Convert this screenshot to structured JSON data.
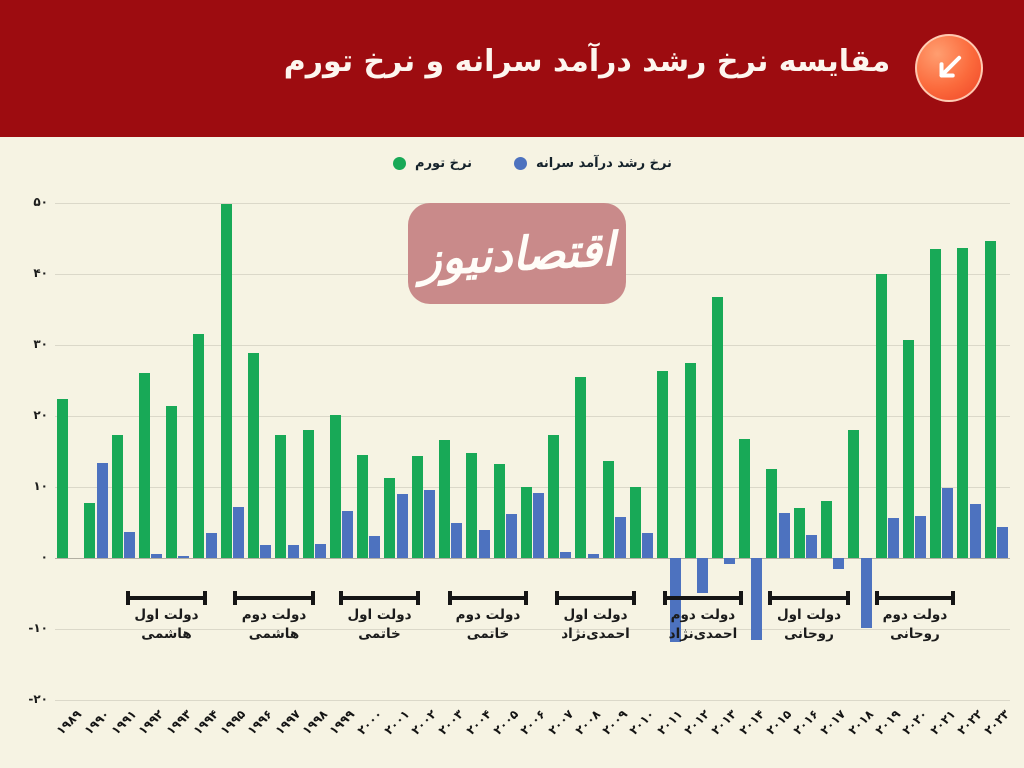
{
  "header": {
    "title": "مقایسه نرخ رشد درآمد سرانه و نرخ تورم",
    "icon": "arrow-down-left-icon",
    "background_color": "#9d0c10",
    "icon_colors": [
      "#ff9e70",
      "#ef4426"
    ]
  },
  "watermark": {
    "text": "اقتصادنیوز",
    "background_color": "#c98a8a"
  },
  "legend": [
    {
      "label": "نرخ تورم",
      "color": "#18a957"
    },
    {
      "label": "نرخ رشد درآمد سرانه",
      "color": "#4d72bf"
    }
  ],
  "chart_data": {
    "type": "bar",
    "title": "مقایسه نرخ رشد درآمد سرانه و نرخ تورم",
    "xlabel": "",
    "ylabel": "",
    "ylim": [
      -20,
      50
    ],
    "grid": true,
    "legend_position": "top",
    "categories": [
      1989,
      1990,
      1991,
      1992,
      1993,
      1994,
      1995,
      1996,
      1997,
      1998,
      1999,
      2000,
      2001,
      2002,
      2003,
      2004,
      2005,
      2006,
      2007,
      2008,
      2009,
      2010,
      2011,
      2012,
      2013,
      2014,
      2015,
      2016,
      2017,
      2018,
      2019,
      2020,
      2021,
      2022,
      2023
    ],
    "categories_fa": [
      "۱۹۸۹",
      "۱۹۹۰",
      "۱۹۹۱",
      "۱۹۹۲",
      "۱۹۹۳",
      "۱۹۹۴",
      "۱۹۹۵",
      "۱۹۹۶",
      "۱۹۹۷",
      "۱۹۹۸",
      "۱۹۹۹",
      "۲۰۰۰",
      "۲۰۰۱",
      "۲۰۰۲",
      "۲۰۰۳",
      "۲۰۰۴",
      "۲۰۰۵",
      "۲۰۰۶",
      "۲۰۰۷",
      "۲۰۰۸",
      "۲۰۰۹",
      "۲۰۱۰",
      "۲۰۱۱",
      "۲۰۱۲",
      "۲۰۱۳",
      "۲۰۱۴",
      "۲۰۱۵",
      "۲۰۱۶",
      "۲۰۱۷",
      "۲۰۱۸",
      "۲۰۱۹",
      "۲۰۲۰",
      "۲۰۲۱",
      "۲۰۲۲",
      "۲۰۲۳"
    ],
    "yticks": [
      50,
      40,
      30,
      20,
      10,
      0,
      -10,
      -20
    ],
    "yticks_fa": [
      "۵۰",
      "۴۰",
      "۳۰",
      "۲۰",
      "۱۰",
      "۰",
      "-۱۰",
      "-۲۰"
    ],
    "series": [
      {
        "name": "نرخ تورم",
        "color": "#18a957",
        "values": [
          22.4,
          7.7,
          17.3,
          26.1,
          21.4,
          31.6,
          49.9,
          28.9,
          17.3,
          18.0,
          20.1,
          14.5,
          11.3,
          14.4,
          16.6,
          14.8,
          13.3,
          10.0,
          17.3,
          25.5,
          13.6,
          10.0,
          26.3,
          27.4,
          36.8,
          16.8,
          12.5,
          7.1,
          8.0,
          18.0,
          40.0,
          30.7,
          43.5,
          43.6,
          44.7
        ]
      },
      {
        "name": "نرخ رشد درآمد سرانه",
        "color": "#4d72bf",
        "values": [
          0,
          13.4,
          3.7,
          0.5,
          0.3,
          3.5,
          7.2,
          1.9,
          1.9,
          2.0,
          6.6,
          3.1,
          9.0,
          9.6,
          5.0,
          4.0,
          6.2,
          9.2,
          0.9,
          0.5,
          5.8,
          3.5,
          -11.8,
          -4.9,
          -0.9,
          -11.5,
          6.3,
          3.3,
          -1.6,
          -9.8,
          5.7,
          5.9,
          9.9,
          7.6,
          4.4
        ]
      }
    ]
  },
  "periods": [
    {
      "label_line1": "دولت اول",
      "label_line2": "هاشمی",
      "x_start_pct": 7.43,
      "x_end_pct": 15.92
    },
    {
      "label_line1": "دولت دوم",
      "label_line2": "هاشمی",
      "x_start_pct": 18.64,
      "x_end_pct": 27.23
    },
    {
      "label_line1": "دولت اول",
      "label_line2": "خاتمی",
      "x_start_pct": 29.74,
      "x_end_pct": 38.22
    },
    {
      "label_line1": "دولت دوم",
      "label_line2": "خاتمی",
      "x_start_pct": 41.15,
      "x_end_pct": 49.53
    },
    {
      "label_line1": "دولت اول",
      "label_line2": "احمدی‌نژاد",
      "x_start_pct": 52.36,
      "x_end_pct": 60.84
    },
    {
      "label_line1": "دولت دوم",
      "label_line2": "احمدی‌نژاد",
      "x_start_pct": 63.66,
      "x_end_pct": 72.04
    },
    {
      "label_line1": "دولت اول",
      "label_line2": "روحانی",
      "x_start_pct": 74.66,
      "x_end_pct": 83.25
    },
    {
      "label_line1": "دولت دوم",
      "label_line2": "روحانی",
      "x_start_pct": 85.86,
      "x_end_pct": 94.24
    }
  ]
}
